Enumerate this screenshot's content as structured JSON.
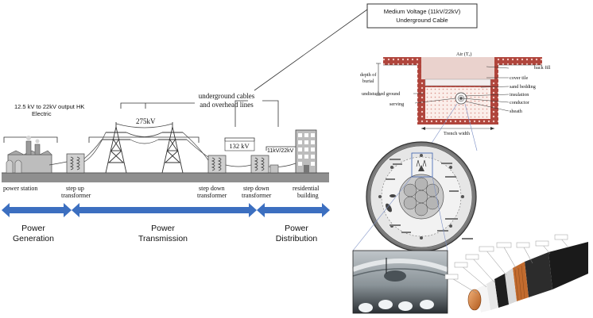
{
  "callout": {
    "line1": "Medium Voltage (11kV/22kV)",
    "line2": "Underground Cable"
  },
  "grid": {
    "cables_label_line1": "underground cables",
    "cables_label_line2": "and overhead lines",
    "station_output_line1": "12.5 kV to 22kV output HK",
    "station_output_line2": "Electric",
    "voltage_275": "275kV",
    "voltage_132": "132 kV",
    "voltage_11_22": "11kV/22kV",
    "labels": {
      "power_station": "power station",
      "step_up_line1": "step up",
      "step_up_line2": "transformer",
      "step_down_1_line1": "step down",
      "step_down_1_line2": "transformer",
      "step_down_2_line1": "step down",
      "step_down_2_line2": "transformer",
      "residential_line1": "residential",
      "residential_line2": "building"
    }
  },
  "stages": {
    "generation_line1": "Power",
    "generation_line2": "Generation",
    "transmission_line1": "Power",
    "transmission_line2": "Transmission",
    "distribution_line1": "Power",
    "distribution_line2": "Distribution"
  },
  "trench": {
    "air": "Air (Tₐ)",
    "depth_line1": "depth of",
    "depth_line2": "burial",
    "undisturbed": "undisturbed ground",
    "back_fill": "back fill",
    "cover_tile": "cover tile",
    "sand_bedding": "sand bedding",
    "insulation": "insulation",
    "conductor": "conductor",
    "sheath": "sheath",
    "serving": "serving",
    "trench_width": "Trench width"
  },
  "colors": {
    "arrow_blue": "#3c6fc0",
    "brick_red": "#b0453c",
    "sand_fill": "#f6e3dd"
  }
}
